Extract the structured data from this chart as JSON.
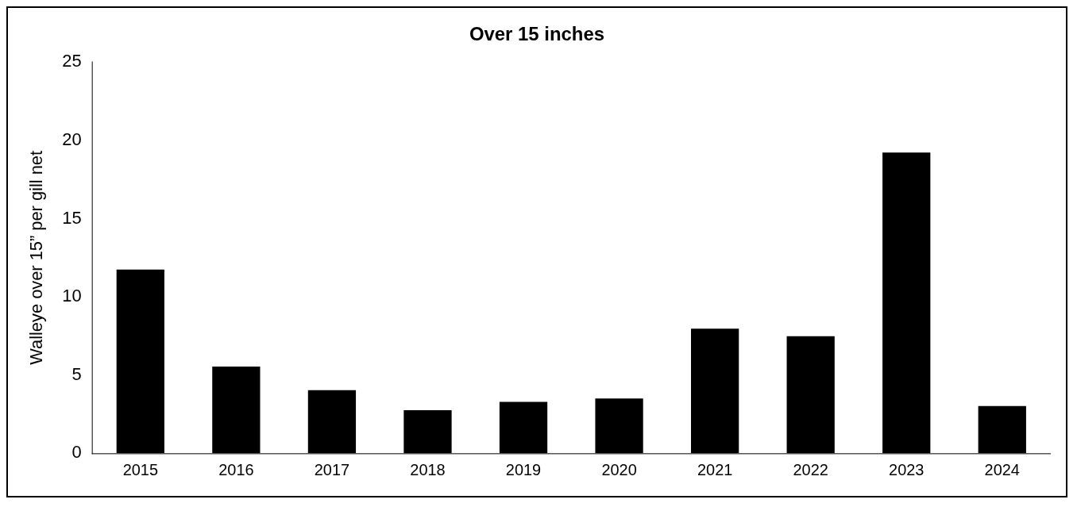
{
  "chart_data": {
    "type": "bar",
    "title": "Over 15 inches",
    "ylabel": "Walleye over 15” per gill net",
    "categories": [
      "2015",
      "2016",
      "2017",
      "2018",
      "2019",
      "2020",
      "2021",
      "2022",
      "2023",
      "2024"
    ],
    "values": [
      11.75,
      5.55,
      4.04,
      2.75,
      3.29,
      3.5,
      7.97,
      7.49,
      19.23,
      3.02
    ],
    "color": "#000000",
    "ylim": [
      0,
      25
    ],
    "yticks": [
      0,
      5,
      10,
      15,
      20,
      25
    ],
    "grid": false,
    "legend": false
  }
}
